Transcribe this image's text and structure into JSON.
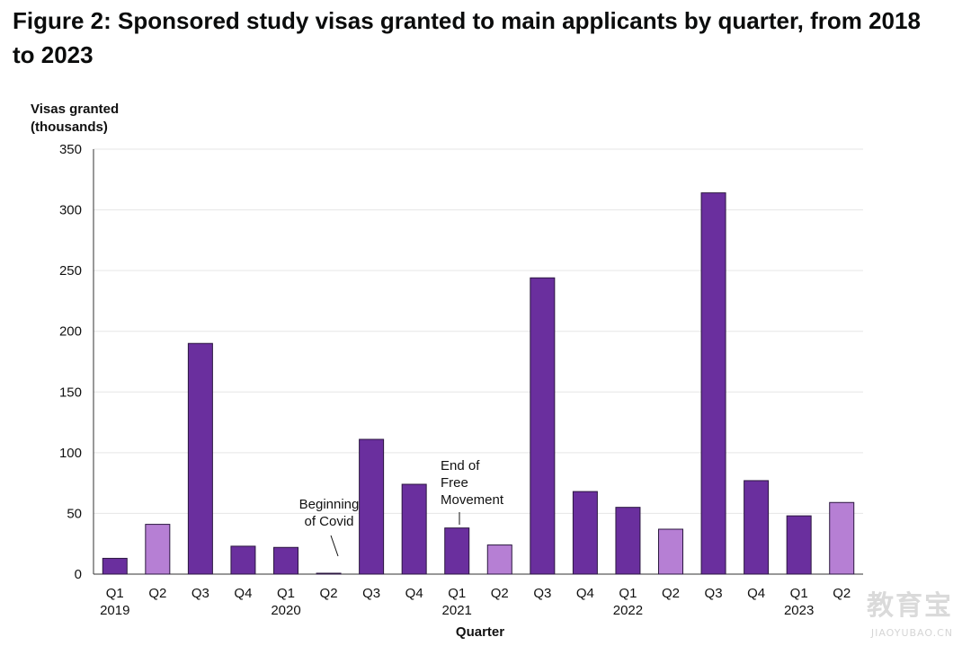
{
  "title": "Figure 2: Sponsored study visas granted to main applicants by quarter, from 2018 to 2023",
  "watermark": {
    "main": "教育宝",
    "sub": "JIAOYUBAO.CN"
  },
  "chart_data": {
    "type": "bar",
    "title": "Figure 2: Sponsored study visas granted to main applicants by quarter, from 2018 to 2023",
    "ylabel_lines": [
      "Visas granted",
      "(thousands)"
    ],
    "xlabel": "Quarter",
    "ylim": [
      0,
      350
    ],
    "yticks": [
      0,
      50,
      100,
      150,
      200,
      250,
      300,
      350
    ],
    "grid": true,
    "categories": [
      "Q1",
      "Q2",
      "Q3",
      "Q4",
      "Q1",
      "Q2",
      "Q3",
      "Q4",
      "Q1",
      "Q2",
      "Q3",
      "Q4",
      "Q1",
      "Q2",
      "Q3",
      "Q4",
      "Q1",
      "Q2"
    ],
    "year_labels": [
      "2019",
      "",
      "",
      "",
      "2020",
      "",
      "",
      "",
      "2021",
      "",
      "",
      "",
      "2022",
      "",
      "",
      "",
      "2023",
      ""
    ],
    "values": [
      13,
      41,
      190,
      23,
      22,
      0.5,
      111,
      74,
      38,
      24,
      244,
      68,
      55,
      37,
      314,
      77,
      48,
      59
    ],
    "highlight": [
      false,
      true,
      false,
      false,
      false,
      true,
      false,
      false,
      false,
      true,
      false,
      false,
      false,
      true,
      false,
      false,
      false,
      true
    ],
    "colors": {
      "main": "#6a2f9e",
      "highlight": "#b67fd4",
      "bar_edge": "#2b1740",
      "grid": "#e6e6e6",
      "axis": "#333333"
    },
    "annotations": [
      {
        "lines": [
          "Beginning",
          "of Covid"
        ],
        "category_index": 5
      },
      {
        "lines": [
          "End of",
          "Free",
          "Movement"
        ],
        "category_index": 8
      }
    ]
  }
}
